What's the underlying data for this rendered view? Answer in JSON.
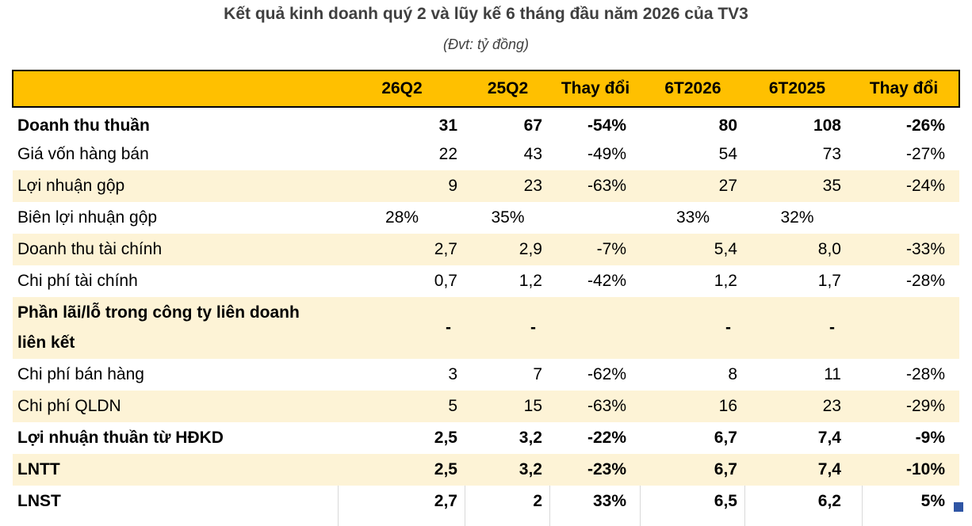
{
  "title": "Kết quả kinh doanh quý 2 và lũy kế 6 tháng đầu năm 2026 của TV3",
  "subtitle": "(Đvt: tỷ đồng)",
  "columns": [
    "",
    "26Q2",
    "25Q2",
    "Thay đổi",
    "6T2026",
    "6T2025",
    "Thay đổi"
  ],
  "rows": [
    {
      "label": "Doanh thu thuần",
      "cells": [
        "31",
        "67",
        "-54%",
        "80",
        "108",
        "-26%"
      ]
    },
    {
      "label": "Giá vốn hàng bán",
      "cells": [
        "22",
        "43",
        "-49%",
        "54",
        "73",
        "-27%"
      ]
    },
    {
      "label": "Lợi nhuận gộp",
      "cells": [
        "9",
        "23",
        "-63%",
        "27",
        "35",
        "-24%"
      ]
    },
    {
      "label": "Biên lợi nhuận gộp",
      "cells": [
        "28%",
        "35%",
        "",
        "33%",
        "32%",
        ""
      ]
    },
    {
      "label": "Doanh thu tài chính",
      "cells": [
        "2,7",
        "2,9",
        "-7%",
        "5,4",
        "8,0",
        "-33%"
      ]
    },
    {
      "label": "Chi phí tài chính",
      "cells": [
        "0,7",
        "1,2",
        "-42%",
        "1,2",
        "1,7",
        "-28%"
      ]
    },
    {
      "label": "Phần lãi/lỗ trong công ty liên doanh liên kết",
      "cells": [
        "-",
        "-",
        "",
        "-",
        "-",
        ""
      ]
    },
    {
      "label": "Chi phí bán hàng",
      "cells": [
        "3",
        "7",
        "-62%",
        "8",
        "11",
        "-28%"
      ]
    },
    {
      "label": "Chi phí QLDN",
      "cells": [
        "5",
        "15",
        "-63%",
        "16",
        "23",
        "-29%"
      ]
    },
    {
      "label": "Lợi nhuận thuần từ HĐKD",
      "cells": [
        "2,5",
        "3,2",
        "-22%",
        "6,7",
        "7,4",
        "-9%"
      ]
    },
    {
      "label": "LNTT",
      "cells": [
        "2,5",
        "3,2",
        "-23%",
        "6,7",
        "7,4",
        "-10%"
      ]
    },
    {
      "label": "LNST",
      "cells": [
        "2,7",
        "2",
        "33%",
        "6,5",
        "6,2",
        "5%"
      ]
    }
  ]
}
